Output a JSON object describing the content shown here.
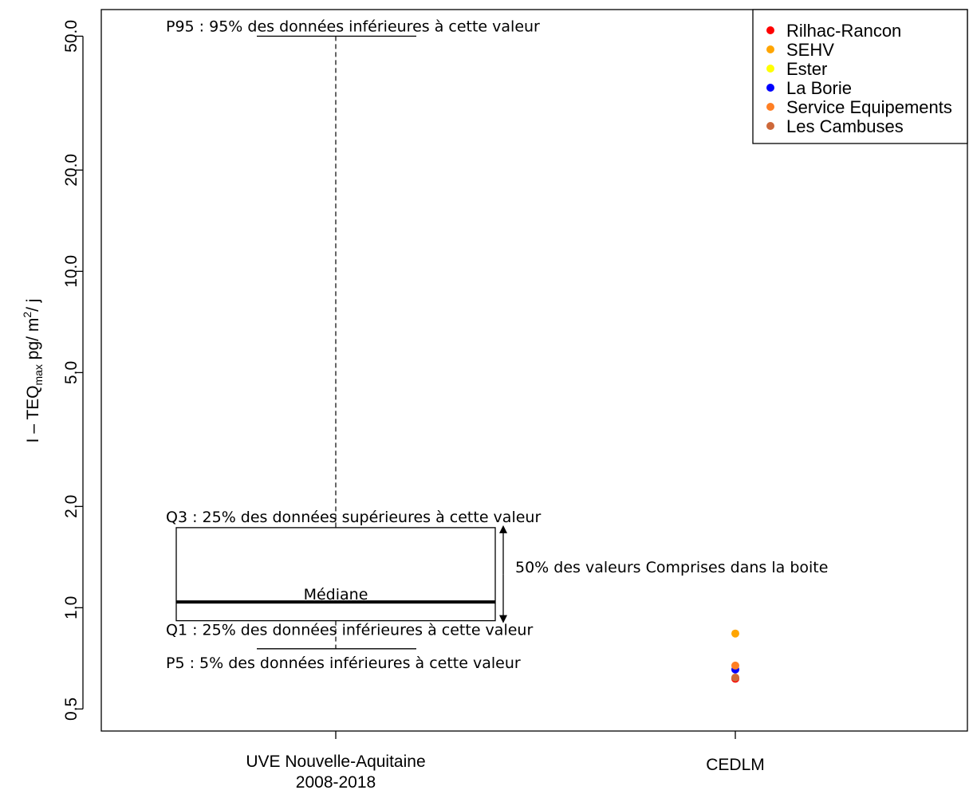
{
  "chart_data": {
    "type": "boxplot",
    "ylabel": {
      "main": "I – TEQ",
      "sub": "max",
      "unit_prefix": " pg/ m",
      "sup": "2",
      "unit_suffix": "/ j"
    },
    "yscale": "log",
    "ylim": [
      0.43,
      60
    ],
    "yticks": [
      {
        "value": 0.5,
        "label": "0.5"
      },
      {
        "value": 1.0,
        "label": "1.0"
      },
      {
        "value": 2.0,
        "label": "2.0"
      },
      {
        "value": 5.0,
        "label": "5.0"
      },
      {
        "value": 10.0,
        "label": "10.0"
      },
      {
        "value": 20.0,
        "label": "20.0"
      },
      {
        "value": 50.0,
        "label": "50.0"
      }
    ],
    "categories": [
      {
        "label_lines": [
          "UVE Nouvelle-Aquitaine",
          "2008-2018"
        ]
      },
      {
        "label_lines": [
          "CEDLM"
        ]
      }
    ],
    "box": {
      "category_index": 0,
      "p5": 0.755,
      "q1": 0.915,
      "median": 1.04,
      "q3": 1.73,
      "p95": 50.0
    },
    "points": [
      {
        "series": "Rilhac-Rancon",
        "value": 0.615
      },
      {
        "series": "SEHV",
        "value": 0.838
      },
      {
        "series": "La Borie",
        "value": 0.655
      },
      {
        "series": "Service Equipements",
        "value": 0.673
      },
      {
        "series": "Les Cambuses",
        "value": 0.62
      }
    ],
    "legend": {
      "position": "top-right",
      "entries": [
        {
          "name": "Rilhac-Rancon",
          "color": "#ff0000"
        },
        {
          "name": "SEHV",
          "color": "#ffa500"
        },
        {
          "name": "Ester",
          "color": "#ffff00"
        },
        {
          "name": "La Borie",
          "color": "#0000ff"
        },
        {
          "name": "Service Equipements",
          "color": "#ff7f24"
        },
        {
          "name": "Les Cambuses",
          "color": "#cd6839"
        }
      ]
    },
    "annotations": {
      "p95": "P95 : 95% des données inférieures à cette valeur",
      "q3": "Q3 : 25% des données supérieures à cette valeur",
      "box": "50% des valeurs Comprises dans la boite",
      "median": "Médiane",
      "q1": "Q1 : 25% des données inférieures à cette valeur",
      "p5": "P5 : 5% des données inférieures à cette valeur"
    }
  }
}
